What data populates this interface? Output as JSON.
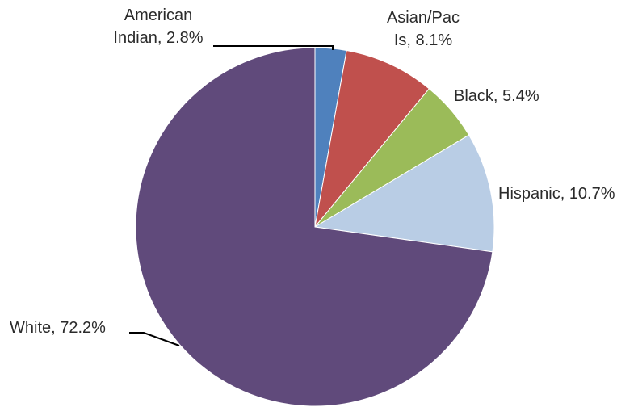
{
  "chart_data": {
    "type": "pie",
    "title": "",
    "slices": [
      {
        "name": "American Indian",
        "value": 2.8,
        "label_lines": [
          "American",
          "Indian, 2.8%"
        ],
        "color": "#4f81bd"
      },
      {
        "name": "Asian/Pac Is",
        "value": 8.1,
        "label_lines": [
          "Asian/Pac",
          "Is, 8.1%"
        ],
        "color": "#c0504d"
      },
      {
        "name": "Black",
        "value": 5.4,
        "label_lines": [
          "Black, 5.4%"
        ],
        "color": "#9bbb59"
      },
      {
        "name": "Hispanic",
        "value": 10.7,
        "label_lines": [
          "Hispanic, 10.7%"
        ],
        "color": "#b9cde5"
      },
      {
        "name": "White",
        "value": 72.2,
        "label_lines": [
          "White, 72.2%"
        ],
        "color": "#604a7b"
      }
    ],
    "start_angle": "12 o'clock",
    "direction": "clockwise",
    "legend": "none"
  }
}
